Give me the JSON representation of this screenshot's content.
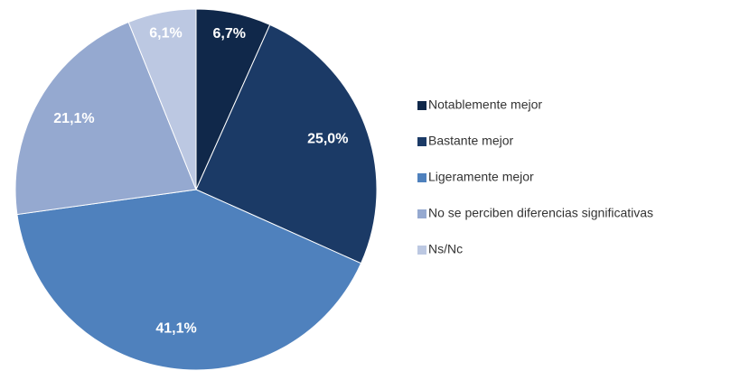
{
  "chart_data": {
    "type": "pie",
    "categories": [
      "Notablemente mejor",
      "Bastante mejor",
      "Ligeramente mejor",
      "No se perciben diferencias significativas",
      "Ns/Nc"
    ],
    "values": [
      6.7,
      25.0,
      41.1,
      21.1,
      6.1
    ],
    "value_labels": [
      "6,7%",
      "25,0%",
      "41,1%",
      "21,1%",
      "6,1%"
    ],
    "colors": [
      "#10284a",
      "#1b3a66",
      "#4f81bd",
      "#95a9d0",
      "#bcc8e2"
    ],
    "legend": "right"
  }
}
